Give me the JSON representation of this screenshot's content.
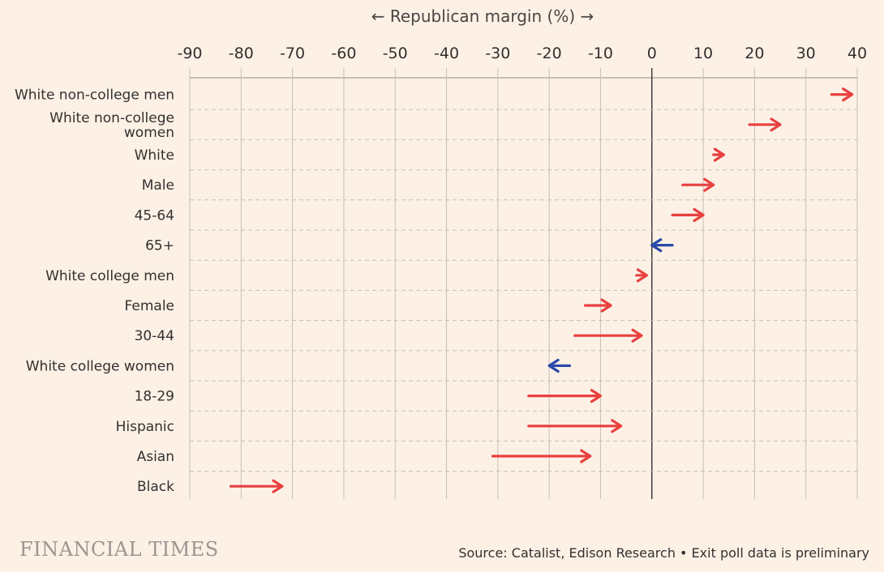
{
  "header": {
    "axis_title": "Republican margin (%)",
    "arrow_left": "←",
    "arrow_right": "→"
  },
  "footer": {
    "logo": "FINANCIAL TIMES",
    "source": "Source: Catalist, Edison Research • Exit poll data is preliminary"
  },
  "colors": {
    "background": "#fdf1e6",
    "increase_arrow": "#e8403f",
    "decrease_arrow": "#2a4aa8",
    "grid": "#c8bfb8",
    "zero_line": "#33302e"
  },
  "chart_data": {
    "type": "arrow-dot",
    "xlabel": "Republican margin (%)",
    "xlim": [
      -90,
      40
    ],
    "xticks": [
      -90,
      -80,
      -70,
      -60,
      -50,
      -40,
      -30,
      -20,
      -10,
      0,
      10,
      20,
      30,
      40
    ],
    "grid": true,
    "categories": [
      "White non-college men",
      "White non-college women",
      "White",
      "Male",
      "45-64",
      "65+",
      "White college men",
      "Female",
      "30-44",
      "White college women",
      "18-29",
      "Hispanic",
      "Asian",
      "Black"
    ],
    "from": [
      35,
      19,
      12,
      6,
      4,
      4,
      -3,
      -13,
      -15,
      -16,
      -24,
      -24,
      -31,
      -82
    ],
    "to": [
      39,
      25,
      14,
      12,
      10,
      0,
      -1,
      -8,
      -2,
      -20,
      -10,
      -6,
      -12,
      -72
    ]
  }
}
